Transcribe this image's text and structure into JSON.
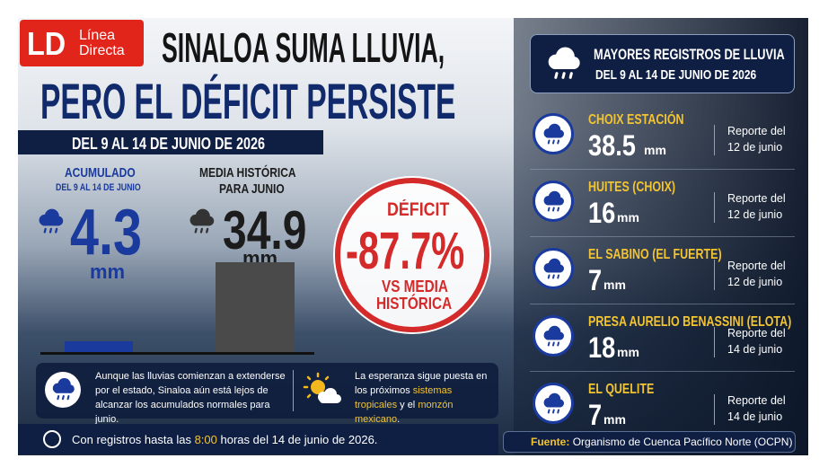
{
  "header": {
    "logo": {
      "mark": "LD",
      "line1": "Línea",
      "line2": "Directa"
    },
    "title_line1": "SINALOA SUMA LLUVIA,",
    "title_line2": "PERO EL DÉFICIT PERSISTE",
    "date_range": "DEL 9 AL 14 DE JUNIO DE 2026"
  },
  "unit": "mm",
  "accumulated": {
    "label": "ACUMULADO",
    "period": "DEL 9 AL 14 DE JUNIO",
    "value": 4.3
  },
  "historical": {
    "label_line1": "MEDIA HISTÓRICA",
    "label_line2": "PARA JUNIO",
    "value": 34.9
  },
  "deficit": {
    "label": "DÉFICIT",
    "value": "-87.7%",
    "note_line1": "VS MEDIA",
    "note_line2": "HISTÓRICA"
  },
  "notes": [
    {
      "parts": [
        "Aunque las lluvias comienzan a extenderse por el estado, Sinaloa aún está lejos de alcanzar los acumulados normales para junio."
      ]
    },
    {
      "parts": [
        "La esperanza sigue puesta en los próximos ",
        "sistemas tropicales",
        " y el ",
        "monzón mexicano",
        "."
      ]
    }
  ],
  "footer": {
    "parts": [
      "Con registros hasta las ",
      "8:00",
      " horas del 14 de junio de 2026."
    ]
  },
  "panel": {
    "title": "MAYORES REGISTROS DE LLUVIA",
    "subtitle": "DEL 9 AL 14 DE JUNIO DE 2026",
    "stations": [
      {
        "name": "CHOIX ESTACIÓN",
        "value": 38.5,
        "report_line1": "Reporte del",
        "report_line2": "12 de junio"
      },
      {
        "name": "HUITES (CHOIX)",
        "value": 16,
        "report_line1": "Reporte del",
        "report_line2": "12 de junio"
      },
      {
        "name": "EL SABINO (EL FUERTE)",
        "value": 7,
        "report_line1": "Reporte del",
        "report_line2": "12 de junio"
      },
      {
        "name": "PRESA AURELIO BENASSINI (ELOTA)",
        "value": 18,
        "report_line1": "Reporte del",
        "report_line2": "14 de junio"
      },
      {
        "name": "EL QUELITE",
        "value": 7,
        "report_line1": "Reporte del",
        "report_line2": "14 de junio"
      }
    ]
  },
  "source": {
    "label": "Fuente:",
    "text": "Organismo de Cuenca Pacífico Norte (OCPN)"
  }
}
